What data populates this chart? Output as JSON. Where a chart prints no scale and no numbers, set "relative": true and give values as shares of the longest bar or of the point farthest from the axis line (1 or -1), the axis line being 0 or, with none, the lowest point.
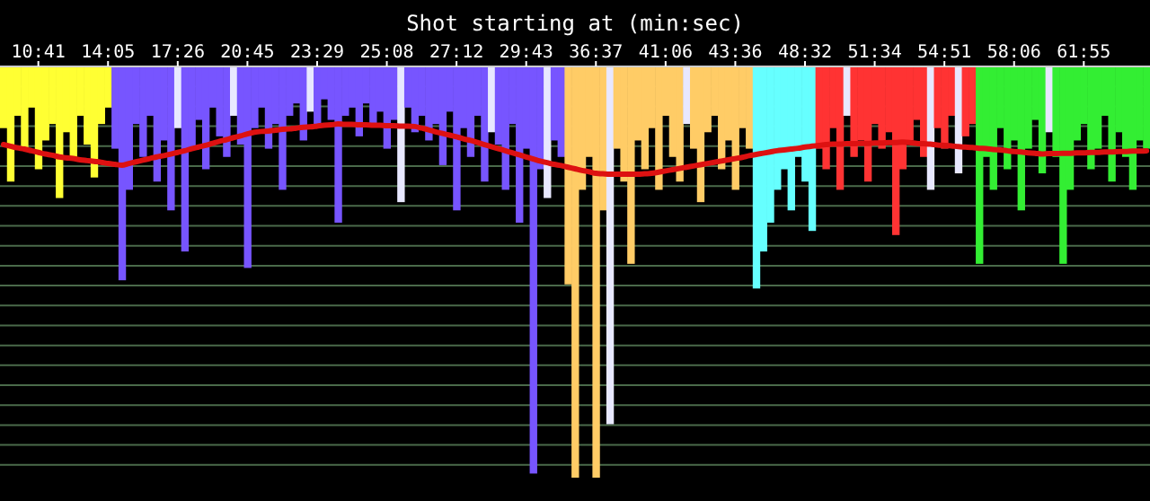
{
  "chart_data": {
    "type": "bar",
    "xlabel": "Shot starting at (min:sec)",
    "relative": true,
    "grid": "y",
    "categories": [
      null,
      null,
      null,
      null,
      null,
      "10:41",
      null,
      null,
      null,
      null,
      null,
      null,
      null,
      null,
      null,
      "14:05",
      null,
      null,
      null,
      null,
      null,
      null,
      null,
      null,
      null,
      "17:26",
      null,
      null,
      null,
      null,
      null,
      null,
      null,
      null,
      null,
      "20:45",
      null,
      null,
      null,
      null,
      null,
      null,
      null,
      null,
      null,
      "23:29",
      null,
      null,
      null,
      null,
      null,
      null,
      null,
      null,
      null,
      "25:08",
      null,
      null,
      null,
      null,
      null,
      null,
      null,
      null,
      null,
      "27:12",
      null,
      null,
      null,
      null,
      null,
      null,
      null,
      null,
      null,
      "29:43",
      null,
      null,
      null,
      null,
      null,
      null,
      null,
      null,
      null,
      "36:37",
      null,
      null,
      null,
      null,
      null,
      null,
      null,
      null,
      null,
      "41:06",
      null,
      null,
      null,
      null,
      null,
      null,
      null,
      null,
      null,
      "43:36",
      null,
      null,
      null,
      null,
      null,
      null,
      null,
      null,
      null,
      "48:32",
      null,
      null,
      null,
      null,
      null,
      null,
      null,
      null,
      null,
      "51:34",
      null,
      null,
      null,
      null,
      null,
      null,
      null,
      null,
      null,
      "54:51",
      null,
      null,
      null,
      null,
      null,
      null,
      null,
      null,
      null,
      "58:06",
      null,
      null,
      null,
      null,
      null,
      null,
      null,
      null,
      null,
      "61:55",
      null,
      null,
      null,
      null,
      null,
      null,
      null,
      null,
      null
    ],
    "series": [
      {
        "colors": [
          "#ffff33",
          "#ffff33",
          "#ffff33",
          "#ffff33",
          "#ffff33",
          "#ffff33",
          "#ffff33",
          "#ffff33",
          "#ffff33",
          "#ffff33",
          "#ffff33",
          "#ffff33",
          "#ffff33",
          "#ffff33",
          "#ffff33",
          "#ffff33",
          "#7755ff",
          "#7755ff",
          "#7755ff",
          "#7755ff",
          "#7755ff",
          "#7755ff",
          "#7755ff",
          "#7755ff",
          "#7755ff",
          "#e8e8ff",
          "#7755ff",
          "#7755ff",
          "#7755ff",
          "#7755ff",
          "#7755ff",
          "#7755ff",
          "#7755ff",
          "#e8e8ff",
          "#7755ff",
          "#7755ff",
          "#7755ff",
          "#7755ff",
          "#7755ff",
          "#7755ff",
          "#7755ff",
          "#7755ff",
          "#7755ff",
          "#7755ff",
          "#e8e8ff",
          "#7755ff",
          "#7755ff",
          "#7755ff",
          "#7755ff",
          "#7755ff",
          "#7755ff",
          "#7755ff",
          "#7755ff",
          "#7755ff",
          "#7755ff",
          "#7755ff",
          "#7755ff",
          "#e8e8ff",
          "#7755ff",
          "#7755ff",
          "#7755ff",
          "#7755ff",
          "#7755ff",
          "#7755ff",
          "#7755ff",
          "#7755ff",
          "#7755ff",
          "#7755ff",
          "#7755ff",
          "#7755ff",
          "#e8e8ff",
          "#7755ff",
          "#7755ff",
          "#7755ff",
          "#7755ff",
          "#7755ff",
          "#7755ff",
          "#7755ff",
          "#e8e8ff",
          "#7755ff",
          "#7755ff",
          "#ffcc66",
          "#ffcc66",
          "#ffcc66",
          "#ffcc66",
          "#ffcc66",
          "#ffcc66",
          "#e8e8ff",
          "#ffcc66",
          "#ffcc66",
          "#ffcc66",
          "#ffcc66",
          "#ffcc66",
          "#ffcc66",
          "#ffcc66",
          "#ffcc66",
          "#ffcc66",
          "#ffcc66",
          "#e8e8ff",
          "#ffcc66",
          "#ffcc66",
          "#ffcc66",
          "#ffcc66",
          "#ffcc66",
          "#ffcc66",
          "#ffcc66",
          "#ffcc66",
          "#ffcc66",
          "#66ffff",
          "#66ffff",
          "#66ffff",
          "#66ffff",
          "#66ffff",
          "#66ffff",
          "#66ffff",
          "#66ffff",
          "#66ffff",
          "#ff3333",
          "#ff3333",
          "#ff3333",
          "#ff3333",
          "#e8e8ff",
          "#ff3333",
          "#ff3333",
          "#ff3333",
          "#ff3333",
          "#ff3333",
          "#ff3333",
          "#ff3333",
          "#ff3333",
          "#ff3333",
          "#ff3333",
          "#ff3333",
          "#e8e8ff",
          "#ff3333",
          "#ff3333",
          "#ff3333",
          "#e8e8ff",
          "#ff3333",
          "#ff3333",
          "#33ee33",
          "#33ee33",
          "#33ee33",
          "#33ee33",
          "#33ee33",
          "#33ee33",
          "#33ee33",
          "#33ee33",
          "#33ee33",
          "#33ee33",
          "#e8e8ff",
          "#33ee33",
          "#33ee33",
          "#33ee33",
          "#33ee33",
          "#33ee33",
          "#33ee33",
          "#33ee33",
          "#33ee33",
          "#33ee33",
          "#33ee33",
          "#33ee33",
          "#33ee33",
          "#33ee33",
          "#33ee33"
        ],
        "values": [
          -0.15,
          -0.28,
          -0.12,
          -0.2,
          -0.1,
          -0.25,
          -0.18,
          -0.14,
          -0.32,
          -0.16,
          -0.22,
          -0.12,
          -0.19,
          -0.27,
          -0.14,
          -0.1,
          -0.2,
          -0.52,
          -0.3,
          -0.14,
          -0.22,
          -0.12,
          -0.28,
          -0.18,
          -0.35,
          -0.15,
          -0.45,
          -0.2,
          -0.13,
          -0.25,
          -0.1,
          -0.17,
          -0.22,
          -0.12,
          -0.19,
          -0.49,
          -0.15,
          -0.1,
          -0.2,
          -0.14,
          -0.3,
          -0.12,
          -0.09,
          -0.18,
          -0.11,
          -0.15,
          -0.08,
          -0.13,
          -0.38,
          -0.12,
          -0.1,
          -0.17,
          -0.09,
          -0.14,
          -0.11,
          -0.2,
          -0.13,
          -0.33,
          -0.1,
          -0.16,
          -0.12,
          -0.18,
          -0.14,
          -0.24,
          -0.11,
          -0.35,
          -0.15,
          -0.22,
          -0.12,
          -0.28,
          -0.16,
          -0.19,
          -0.3,
          -0.14,
          -0.38,
          -0.2,
          -0.99,
          -0.25,
          -0.32,
          -0.18,
          -0.22,
          -0.53,
          -1,
          -0.3,
          -0.22,
          -1,
          -0.35,
          -0.87,
          -0.2,
          -0.28,
          -0.48,
          -0.18,
          -0.25,
          -0.15,
          -0.3,
          -0.12,
          -0.22,
          -0.28,
          -0.14,
          -0.2,
          -0.33,
          -0.16,
          -0.12,
          -0.25,
          -0.18,
          -0.3,
          -0.15,
          -0.2,
          -0.54,
          -0.45,
          -0.38,
          -0.3,
          -0.25,
          -0.35,
          -0.22,
          -0.28,
          -0.4,
          -0.2,
          -0.25,
          -0.15,
          -0.3,
          -0.12,
          -0.22,
          -0.18,
          -0.28,
          -0.14,
          -0.2,
          -0.16,
          -0.41,
          -0.25,
          -0.18,
          -0.13,
          -0.22,
          -0.3,
          -0.15,
          -0.2,
          -0.12,
          -0.26,
          -0.17,
          -0.14,
          -0.48,
          -0.22,
          -0.3,
          -0.15,
          -0.25,
          -0.18,
          -0.35,
          -0.2,
          -0.13,
          -0.26,
          -0.16,
          -0.22,
          -0.48,
          -0.3,
          -0.18,
          -0.14,
          -0.25,
          -0.2,
          -0.12,
          -0.28,
          -0.16,
          -0.22,
          -0.3,
          -0.18,
          -0.2
        ]
      },
      {
        "type": "line",
        "color": "#dd1111",
        "values": [
          -0.19,
          -0.194,
          -0.198,
          -0.201,
          -0.205,
          -0.209,
          -0.213,
          -0.216,
          -0.22,
          -0.222,
          -0.224,
          -0.227,
          -0.229,
          -0.231,
          -0.233,
          -0.236,
          -0.238,
          -0.24,
          -0.236,
          -0.232,
          -0.228,
          -0.224,
          -0.22,
          -0.217,
          -0.213,
          -0.209,
          -0.205,
          -0.2,
          -0.196,
          -0.192,
          -0.187,
          -0.182,
          -0.178,
          -0.173,
          -0.169,
          -0.164,
          -0.16,
          -0.158,
          -0.157,
          -0.155,
          -0.153,
          -0.152,
          -0.15,
          -0.148,
          -0.147,
          -0.145,
          -0.143,
          -0.142,
          -0.14,
          -0.141,
          -0.141,
          -0.142,
          -0.142,
          -0.143,
          -0.143,
          -0.144,
          -0.144,
          -0.145,
          -0.145,
          -0.146,
          -0.15,
          -0.154,
          -0.159,
          -0.163,
          -0.167,
          -0.171,
          -0.176,
          -0.18,
          -0.185,
          -0.19,
          -0.195,
          -0.2,
          -0.205,
          -0.21,
          -0.215,
          -0.22,
          -0.225,
          -0.23,
          -0.234,
          -0.238,
          -0.241,
          -0.245,
          -0.249,
          -0.253,
          -0.256,
          -0.26,
          -0.261,
          -0.262,
          -0.262,
          -0.262,
          -0.262,
          -0.262,
          -0.261,
          -0.26,
          -0.257,
          -0.254,
          -0.251,
          -0.248,
          -0.245,
          -0.242,
          -0.239,
          -0.236,
          -0.233,
          -0.23,
          -0.227,
          -0.224,
          -0.221,
          -0.217,
          -0.214,
          -0.211,
          -0.208,
          -0.205,
          -0.203,
          -0.201,
          -0.199,
          -0.196,
          -0.194,
          -0.192,
          -0.19,
          -0.189,
          -0.189,
          -0.188,
          -0.188,
          -0.187,
          -0.187,
          -0.186,
          -0.186,
          -0.185,
          -0.185,
          -0.184,
          -0.185,
          -0.187,
          -0.188,
          -0.189,
          -0.191,
          -0.192,
          -0.193,
          -0.195,
          -0.196,
          -0.197,
          -0.199,
          -0.2,
          -0.202,
          -0.203,
          -0.205,
          -0.207,
          -0.208,
          -0.21,
          -0.211,
          -0.213,
          -0.212,
          -0.212,
          -0.211,
          -0.211,
          -0.21,
          -0.21,
          -0.209,
          -0.209,
          -0.208,
          -0.208,
          -0.207,
          -0.207,
          -0.206,
          -0.206,
          -0.205
        ]
      }
    ]
  }
}
